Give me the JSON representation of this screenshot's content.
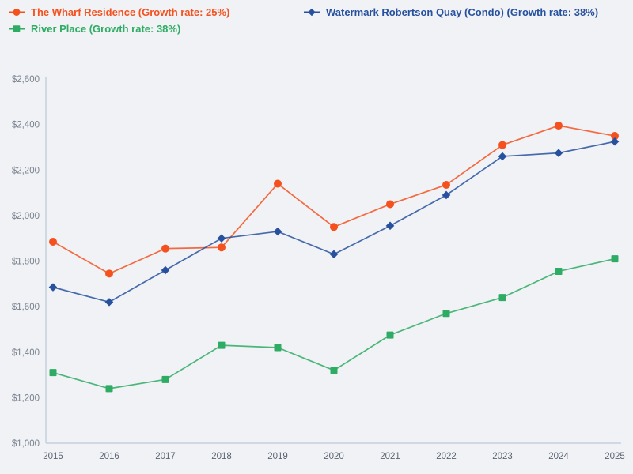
{
  "page": {
    "background": "#F0F2F5"
  },
  "chart_data": {
    "type": "line",
    "title": "",
    "xlabel": "",
    "ylabel": "",
    "grid": false,
    "legend_position": "top-left",
    "x": [
      2015,
      2016,
      2017,
      2018,
      2019,
      2020,
      2021,
      2022,
      2023,
      2024,
      2025
    ],
    "xtick_labels": [
      "2015",
      "2016",
      "2017",
      "2018",
      "2019",
      "2020",
      "2021",
      "2022",
      "2023",
      "2024",
      "2025"
    ],
    "ylim": [
      1000,
      2600
    ],
    "ytick_step": 200,
    "ytick_labels": [
      "$1,000",
      "$1,200",
      "$1,400",
      "$1,600",
      "$1,800",
      "$2,000",
      "$2,200",
      "$2,400",
      "$2,600"
    ],
    "series": [
      {
        "name": "The Wharf Residence",
        "growth_rate": "25%",
        "legend_label": "The Wharf Residence (Growth rate: 25%)",
        "color": "#F4511E",
        "marker": "circle",
        "values": [
          1885,
          1745,
          1855,
          1860,
          2140,
          1950,
          2050,
          2135,
          2310,
          2395,
          2350
        ]
      },
      {
        "name": "Watermark Robertson Quay (Condo)",
        "growth_rate": "38%",
        "legend_label": "Watermark Robertson Quay (Condo) (Growth rate: 38%)",
        "color": "#27519E",
        "marker": "diamond",
        "values": [
          1685,
          1620,
          1760,
          1900,
          1930,
          1830,
          1955,
          2090,
          2260,
          2275,
          2325
        ]
      },
      {
        "name": "River Place",
        "growth_rate": "38%",
        "legend_label": "River Place (Growth rate: 38%)",
        "color": "#2EAC63",
        "marker": "square",
        "values": [
          1310,
          1240,
          1280,
          1430,
          1420,
          1320,
          1475,
          1570,
          1640,
          1755,
          1810
        ]
      }
    ],
    "colors": {
      "axis_line": "#C5CFDE",
      "ytick_label": "#79828F",
      "xtick_label": "#5C6572"
    }
  }
}
